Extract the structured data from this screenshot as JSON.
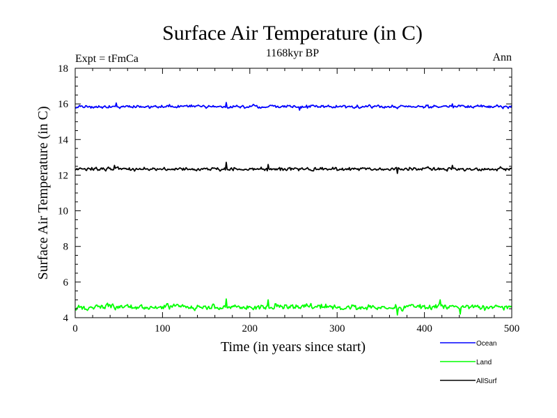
{
  "chart_data": {
    "type": "line",
    "title": "Surface Air Temperature (in C)",
    "subtitle": "1168kyr BP",
    "left_label": "Expt = tFmCa",
    "right_label": "Ann",
    "xlabel": "Time (in years since start)",
    "ylabel": "Surface Air Temperature (in C)",
    "xlim": [
      0,
      500
    ],
    "ylim": [
      4,
      18
    ],
    "xticks": [
      0,
      100,
      200,
      300,
      400,
      500
    ],
    "yticks": [
      4,
      6,
      8,
      10,
      12,
      14,
      16,
      18
    ],
    "legend_position": "bottom-right",
    "series": [
      {
        "name": "Ocean",
        "color": "#0000ff",
        "mean": 15.85,
        "noise": 0.09,
        "spikes": [
          [
            47,
            16.05
          ],
          [
            173,
            16.08
          ],
          [
            257,
            15.65
          ],
          [
            432,
            16.0
          ]
        ]
      },
      {
        "name": "Land",
        "color": "#00ff00",
        "mean": 4.6,
        "noise": 0.16,
        "spikes": [
          [
            173,
            5.05
          ],
          [
            221,
            5.0
          ],
          [
            369,
            4.15
          ],
          [
            418,
            5.0
          ],
          [
            441,
            4.2
          ]
        ]
      },
      {
        "name": "AllSurf",
        "color": "#000000",
        "mean": 12.35,
        "noise": 0.1,
        "spikes": [
          [
            45,
            12.55
          ],
          [
            173,
            12.72
          ],
          [
            221,
            12.6
          ],
          [
            369,
            12.1
          ],
          [
            432,
            12.55
          ]
        ]
      }
    ]
  }
}
